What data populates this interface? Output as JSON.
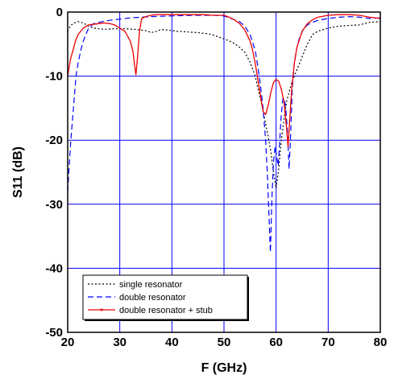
{
  "chart_data": {
    "type": "line",
    "xlabel": "F (GHz)",
    "ylabel": "S11 (dB)",
    "xlim": [
      20,
      80
    ],
    "ylim": [
      -50,
      0
    ],
    "x_ticks": [
      "20",
      "30",
      "40",
      "50",
      "60",
      "70",
      "80"
    ],
    "y_ticks": [
      "0",
      "-10",
      "-20",
      "-30",
      "-40",
      "-50"
    ],
    "grid": true,
    "legend_position": "bottom-left",
    "series": [
      {
        "name": "single resonator",
        "color": "#000000",
        "dash": "dotted",
        "x": [
          20,
          20.5,
          21,
          22,
          23,
          24,
          25,
          27,
          29,
          31,
          33,
          35,
          36,
          37,
          38,
          39,
          41,
          43,
          45,
          47,
          48,
          49,
          50,
          51,
          52,
          53,
          54,
          55,
          56,
          56.5,
          57,
          57.5,
          58,
          58.5,
          59,
          59.5,
          60,
          60.5,
          61,
          62,
          63,
          64,
          65,
          66,
          67,
          68,
          70,
          72,
          74,
          76,
          78,
          80
        ],
        "y": [
          -3,
          -2.2,
          -1.8,
          -1.5,
          -1.7,
          -2.2,
          -2.5,
          -2.7,
          -2.6,
          -2.6,
          -2.7,
          -2.9,
          -3.2,
          -3.0,
          -2.7,
          -2.8,
          -3.0,
          -3.1,
          -3.2,
          -3.4,
          -3.6,
          -3.9,
          -4.2,
          -4.5,
          -4.9,
          -5.5,
          -6.3,
          -7.8,
          -10.0,
          -11.8,
          -13.5,
          -15.5,
          -17.5,
          -19.5,
          -21.8,
          -25.0,
          -27.5,
          -24.5,
          -20.0,
          -14.0,
          -11.0,
          -9.0,
          -7.0,
          -5.0,
          -3.5,
          -3.0,
          -2.5,
          -2.2,
          -2.1,
          -2.0,
          -1.6,
          -1.5
        ]
      },
      {
        "name": "double resonator",
        "color": "#0000ff",
        "dash": "dashed",
        "x": [
          20,
          20.3,
          20.6,
          21,
          21.3,
          21.6,
          22,
          22.5,
          23,
          23.5,
          24,
          25,
          26,
          28,
          30,
          32,
          34,
          36,
          38,
          40,
          42,
          44,
          46,
          48,
          50,
          51,
          52,
          53,
          54,
          55,
          56,
          56.5,
          57,
          57.5,
          58,
          58.3,
          58.6,
          58.9,
          59.2,
          59.5,
          59.8,
          60.1,
          60.4,
          60.7,
          61,
          61.3,
          61.6,
          61.9,
          62.2,
          62.5,
          62.8,
          63.1,
          63.5,
          64,
          64.5,
          65,
          66,
          67,
          68,
          70,
          72,
          74,
          76,
          78,
          80
        ],
        "y": [
          -28,
          -24,
          -20,
          -16,
          -13,
          -10,
          -8,
          -6,
          -4.5,
          -3.5,
          -2.5,
          -1.8,
          -1.6,
          -1.3,
          -1.1,
          -0.9,
          -0.8,
          -0.7,
          -0.65,
          -0.6,
          -0.55,
          -0.5,
          -0.5,
          -0.5,
          -0.6,
          -0.9,
          -1.2,
          -1.5,
          -2.2,
          -3.5,
          -6.0,
          -8.5,
          -11.5,
          -15.0,
          -20.0,
          -25.0,
          -31.0,
          -37.5,
          -29.0,
          -23.5,
          -21.0,
          -22.5,
          -24.0,
          -20.0,
          -16.0,
          -13.5,
          -13.5,
          -15.5,
          -19.0,
          -24.5,
          -19.0,
          -12.0,
          -8.0,
          -5.5,
          -4.0,
          -3.0,
          -2.0,
          -1.6,
          -1.3,
          -1.0,
          -0.8,
          -0.7,
          -0.8,
          -1.0,
          -0.9
        ]
      },
      {
        "name": "double resonator + stub",
        "color": "#ee0000",
        "dash": "solid",
        "x": [
          20,
          20.5,
          21,
          21.5,
          22,
          23,
          24,
          26,
          27,
          28,
          29,
          30,
          31,
          32,
          32.5,
          32.8,
          33.1,
          33.4,
          33.8,
          34.2,
          35,
          36,
          37,
          38,
          40,
          42,
          44,
          46,
          48,
          50,
          51,
          52,
          53,
          54,
          55,
          55.5,
          56,
          56.5,
          57,
          57.5,
          58,
          58.5,
          59,
          59.5,
          60,
          60.5,
          61,
          61.5,
          62,
          62.3,
          62.6,
          63,
          63.5,
          64,
          65,
          66,
          67,
          68,
          70,
          72,
          74,
          76,
          78,
          80
        ],
        "y": [
          -10,
          -7.5,
          -6,
          -4.5,
          -3.5,
          -2.5,
          -2.0,
          -1.8,
          -1.7,
          -1.8,
          -2.0,
          -2.5,
          -3.0,
          -4.5,
          -6.0,
          -8.0,
          -9.8,
          -7.0,
          -3.0,
          -1.0,
          -0.7,
          -0.5,
          -0.4,
          -0.4,
          -0.4,
          -0.4,
          -0.4,
          -0.4,
          -0.5,
          -0.5,
          -0.8,
          -1.2,
          -1.8,
          -2.8,
          -4.5,
          -6.0,
          -8.0,
          -10.5,
          -13.0,
          -15.5,
          -16.0,
          -14.5,
          -12.5,
          -11.0,
          -10.5,
          -10.8,
          -12.0,
          -14.0,
          -18.0,
          -21.0,
          -17.0,
          -12.0,
          -8.0,
          -5.5,
          -3.0,
          -1.8,
          -1.2,
          -0.8,
          -0.5,
          -0.4,
          -0.4,
          -0.5,
          -0.8,
          -1.0
        ]
      }
    ]
  }
}
